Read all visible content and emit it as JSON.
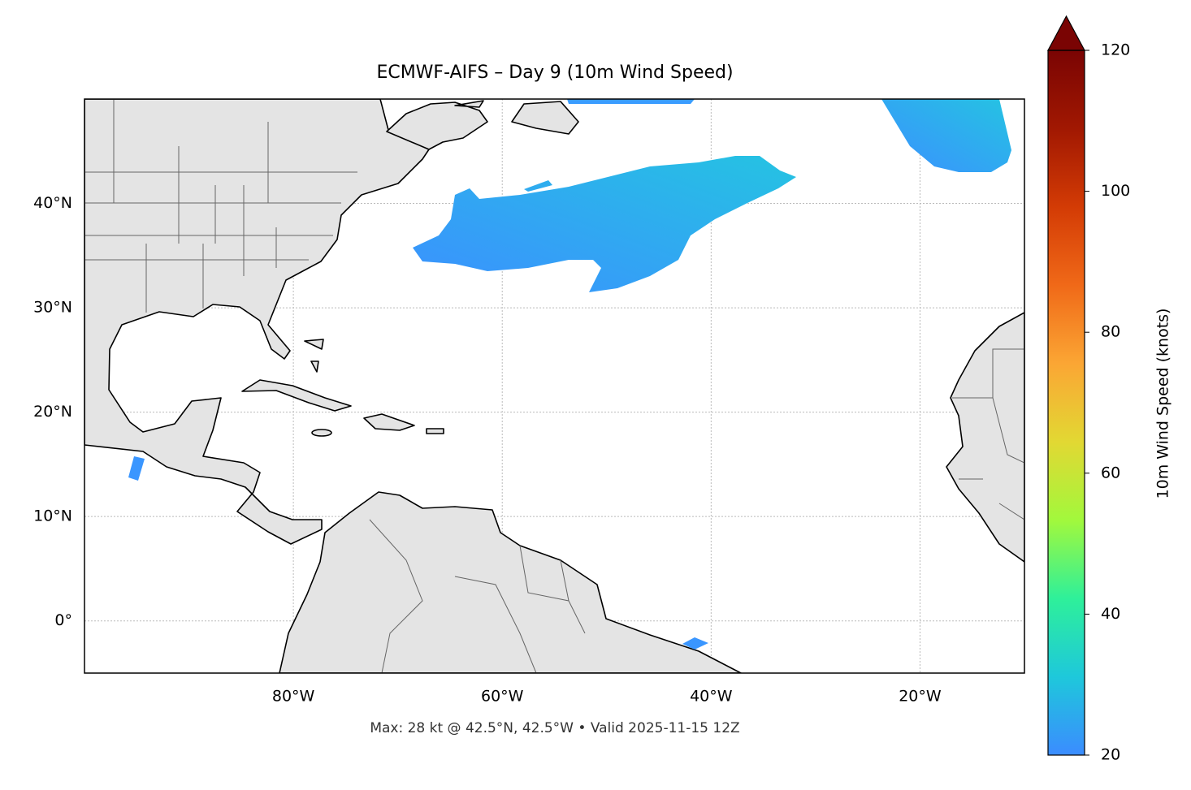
{
  "chart_data": {
    "type": "map",
    "title": "ECMWF-AIFS – Day 9 (10m Wind Speed)",
    "footer": "Max: 28 kt @ 42.5°N, 42.5°W • Valid 2025-11-15 12Z",
    "xlim": [
      -100,
      -10
    ],
    "ylim": [
      -5,
      50
    ],
    "xticks": [
      {
        "value": -80,
        "label": "80°W"
      },
      {
        "value": -60,
        "label": "60°W"
      },
      {
        "value": -40,
        "label": "40°W"
      },
      {
        "value": -20,
        "label": "20°W"
      }
    ],
    "yticks": [
      {
        "value": 0,
        "label": "0°"
      },
      {
        "value": 10,
        "label": "10°N"
      },
      {
        "value": 20,
        "label": "20°N"
      },
      {
        "value": 30,
        "label": "30°N"
      },
      {
        "value": 40,
        "label": "40°N"
      }
    ],
    "grid": true,
    "colorbar": {
      "label": "10m Wind Speed (knots)",
      "lim": [
        20,
        120
      ],
      "ticks": [
        20,
        40,
        60,
        80,
        100,
        120
      ],
      "extend": "max",
      "colors": [
        "#3b8cff",
        "#1ec8db",
        "#2ef09a",
        "#a2f83c",
        "#e2d833",
        "#fba634",
        "#f06918",
        "#d33b05",
        "#a11802",
        "#7a0403"
      ]
    }
  }
}
